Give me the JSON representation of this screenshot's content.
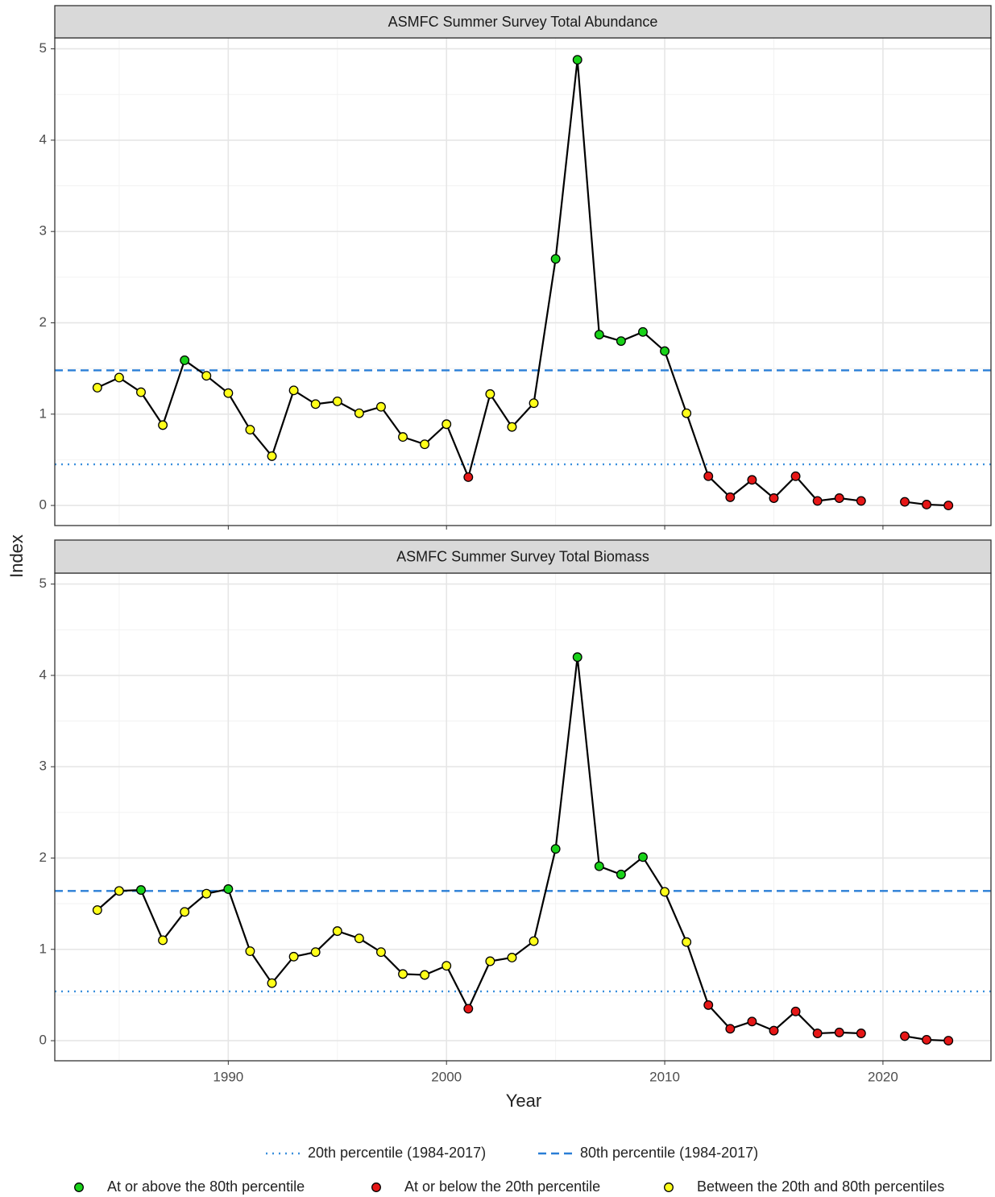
{
  "x_label": "Year",
  "y_label": "Index",
  "legend": {
    "lines": [
      {
        "label": "20th percentile (1984-2017)",
        "style": "dotted",
        "color": "#3a8fdd"
      },
      {
        "label": "80th percentile (1984-2017)",
        "style": "dashed",
        "color": "#2a7ed6"
      }
    ],
    "points": [
      {
        "label": "At or above the 80th percentile",
        "color": "#19d219"
      },
      {
        "label": "At or below the 20th percentile",
        "color": "#e61717"
      },
      {
        "label": "Between the 20th and 80th percentiles",
        "color": "#ffff1a"
      }
    ]
  },
  "chart_data": [
    {
      "type": "line",
      "title": "ASMFC Summer Survey Total Abundance",
      "x": [
        1984,
        1985,
        1986,
        1987,
        1988,
        1989,
        1990,
        1991,
        1992,
        1993,
        1994,
        1995,
        1996,
        1997,
        1998,
        1999,
        2000,
        2001,
        2002,
        2003,
        2004,
        2005,
        2006,
        2007,
        2008,
        2009,
        2010,
        2011,
        2012,
        2013,
        2014,
        2015,
        2016,
        2017,
        2018,
        2019,
        2020,
        2021,
        2022,
        2023
      ],
      "values": [
        1.29,
        1.4,
        1.24,
        0.88,
        1.59,
        1.42,
        1.23,
        0.83,
        0.54,
        1.26,
        1.11,
        1.14,
        1.01,
        1.08,
        0.75,
        0.67,
        0.89,
        0.31,
        1.22,
        0.86,
        1.12,
        2.7,
        4.88,
        1.87,
        1.8,
        1.9,
        1.69,
        1.01,
        0.32,
        0.09,
        0.28,
        0.08,
        0.32,
        0.05,
        0.08,
        0.05,
        null,
        0.04,
        0.01,
        0.0
      ],
      "point_colors": [
        "#ffff1a",
        "#ffff1a",
        "#ffff1a",
        "#ffff1a",
        "#19d219",
        "#ffff1a",
        "#ffff1a",
        "#ffff1a",
        "#ffff1a",
        "#ffff1a",
        "#ffff1a",
        "#ffff1a",
        "#ffff1a",
        "#ffff1a",
        "#ffff1a",
        "#ffff1a",
        "#ffff1a",
        "#e61717",
        "#ffff1a",
        "#ffff1a",
        "#ffff1a",
        "#19d219",
        "#19d219",
        "#19d219",
        "#19d219",
        "#19d219",
        "#19d219",
        "#ffff1a",
        "#e61717",
        "#e61717",
        "#e61717",
        "#e61717",
        "#e61717",
        "#e61717",
        "#e61717",
        "#e61717",
        null,
        "#e61717",
        "#e61717",
        "#e61717"
      ],
      "line_color": "#000000",
      "reference_lines": [
        {
          "value": 0.45,
          "style": "dotted",
          "color": "#3a8fdd"
        },
        {
          "value": 1.48,
          "style": "dashed",
          "color": "#2a7ed6"
        }
      ],
      "xlim": [
        1982.05,
        2024.95
      ],
      "xticks": [
        1990,
        2000,
        2010,
        2020
      ],
      "ylim": [
        -0.22,
        5.12
      ],
      "yticks": [
        0,
        1,
        2,
        3,
        4,
        5
      ],
      "grid": true
    },
    {
      "type": "line",
      "title": "ASMFC Summer Survey Total Biomass",
      "x": [
        1984,
        1985,
        1986,
        1987,
        1988,
        1989,
        1990,
        1991,
        1992,
        1993,
        1994,
        1995,
        1996,
        1997,
        1998,
        1999,
        2000,
        2001,
        2002,
        2003,
        2004,
        2005,
        2006,
        2007,
        2008,
        2009,
        2010,
        2011,
        2012,
        2013,
        2014,
        2015,
        2016,
        2017,
        2018,
        2019,
        2020,
        2021,
        2022,
        2023
      ],
      "values": [
        1.43,
        1.64,
        1.65,
        1.1,
        1.41,
        1.61,
        1.66,
        0.98,
        0.63,
        0.92,
        0.97,
        1.2,
        1.12,
        0.97,
        0.73,
        0.72,
        0.82,
        0.35,
        0.87,
        0.91,
        1.09,
        2.1,
        4.2,
        1.91,
        1.82,
        2.01,
        1.63,
        1.08,
        0.39,
        0.13,
        0.21,
        0.11,
        0.32,
        0.08,
        0.09,
        0.08,
        null,
        0.05,
        0.01,
        0.0
      ],
      "point_colors": [
        "#ffff1a",
        "#ffff1a",
        "#19d219",
        "#ffff1a",
        "#ffff1a",
        "#ffff1a",
        "#19d219",
        "#ffff1a",
        "#ffff1a",
        "#ffff1a",
        "#ffff1a",
        "#ffff1a",
        "#ffff1a",
        "#ffff1a",
        "#ffff1a",
        "#ffff1a",
        "#ffff1a",
        "#e61717",
        "#ffff1a",
        "#ffff1a",
        "#ffff1a",
        "#19d219",
        "#19d219",
        "#19d219",
        "#19d219",
        "#19d219",
        "#ffff1a",
        "#ffff1a",
        "#e61717",
        "#e61717",
        "#e61717",
        "#e61717",
        "#e61717",
        "#e61717",
        "#e61717",
        "#e61717",
        null,
        "#e61717",
        "#e61717",
        "#e61717"
      ],
      "line_color": "#000000",
      "reference_lines": [
        {
          "value": 0.54,
          "style": "dotted",
          "color": "#3a8fdd"
        },
        {
          "value": 1.64,
          "style": "dashed",
          "color": "#2a7ed6"
        }
      ],
      "xlim": [
        1982.05,
        2024.95
      ],
      "xticks": [
        1990,
        2000,
        2010,
        2020
      ],
      "ylim": [
        -0.22,
        5.12
      ],
      "yticks": [
        0,
        1,
        2,
        3,
        4,
        5
      ],
      "grid": true
    }
  ]
}
